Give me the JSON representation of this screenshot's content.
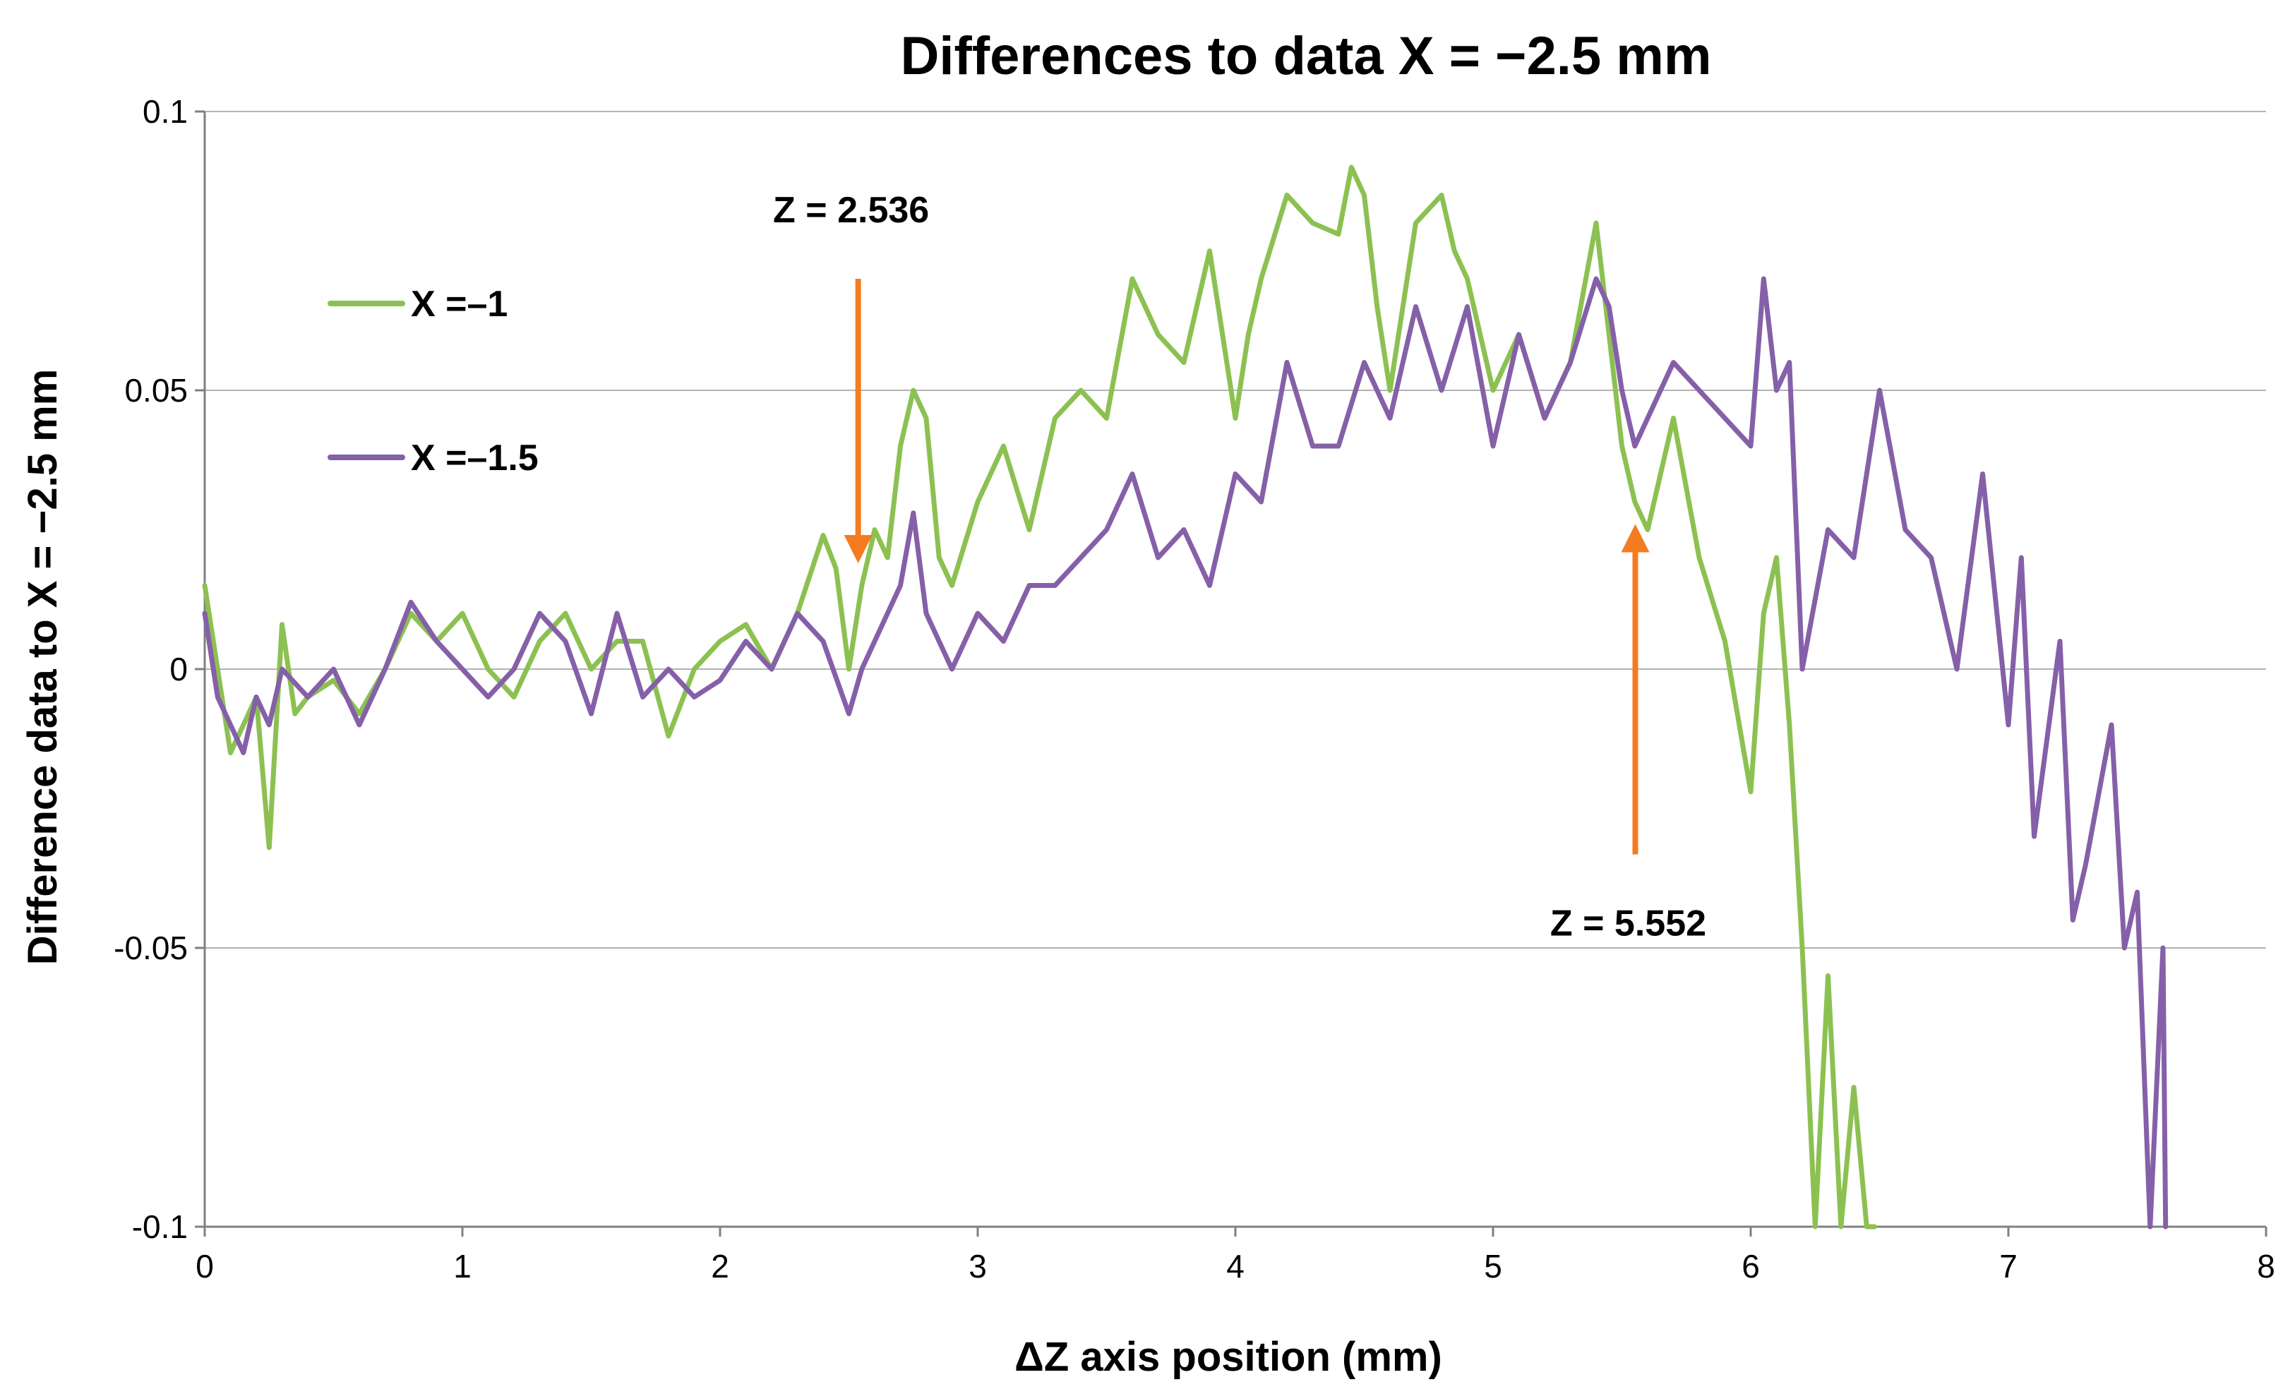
{
  "chart_data": {
    "type": "line",
    "title": "Differences to data X = −2.5 mm",
    "xlabel": "ΔZ axis position (mm)",
    "ylabel": "Difference data to X = −2.5 mm",
    "xlim": [
      0,
      8
    ],
    "ylim": [
      -0.1,
      0.1
    ],
    "xticks": [
      "0",
      "1",
      "2",
      "3",
      "4",
      "5",
      "6",
      "7",
      "8"
    ],
    "yticks": [
      "0.1",
      "0.05",
      "0",
      "-0.05",
      "-0.1"
    ],
    "grid": "horizontal",
    "legend_position": "top-left",
    "series": [
      {
        "name": "X =–1",
        "color": "#8cc152",
        "x": [
          0.0,
          0.05,
          0.1,
          0.15,
          0.2,
          0.25,
          0.3,
          0.35,
          0.4,
          0.5,
          0.6,
          0.7,
          0.8,
          0.9,
          1.0,
          1.1,
          1.2,
          1.3,
          1.4,
          1.5,
          1.6,
          1.7,
          1.8,
          1.9,
          2.0,
          2.1,
          2.2,
          2.3,
          2.4,
          2.45,
          2.5,
          2.55,
          2.6,
          2.65,
          2.7,
          2.75,
          2.8,
          2.85,
          2.9,
          3.0,
          3.1,
          3.2,
          3.3,
          3.4,
          3.5,
          3.6,
          3.7,
          3.8,
          3.9,
          4.0,
          4.05,
          4.1,
          4.2,
          4.3,
          4.4,
          4.45,
          4.5,
          4.55,
          4.6,
          4.7,
          4.8,
          4.85,
          4.9,
          5.0,
          5.1,
          5.2,
          5.3,
          5.4,
          5.45,
          5.5,
          5.55,
          5.6,
          5.7,
          5.8,
          5.9,
          6.0,
          6.05,
          6.1,
          6.15,
          6.2,
          6.25,
          6.3,
          6.35,
          6.4,
          6.45,
          6.48
        ],
        "y": [
          0.015,
          0.0,
          -0.015,
          -0.01,
          -0.005,
          -0.032,
          0.008,
          -0.008,
          -0.005,
          -0.002,
          -0.008,
          0.0,
          0.01,
          0.005,
          0.01,
          0.0,
          -0.005,
          0.005,
          0.01,
          0.0,
          0.005,
          0.005,
          -0.012,
          0.0,
          0.005,
          0.008,
          0.0,
          0.01,
          0.024,
          0.018,
          0.0,
          0.015,
          0.025,
          0.02,
          0.04,
          0.05,
          0.045,
          0.02,
          0.015,
          0.03,
          0.04,
          0.025,
          0.045,
          0.05,
          0.045,
          0.07,
          0.06,
          0.055,
          0.075,
          0.045,
          0.06,
          0.07,
          0.085,
          0.08,
          0.078,
          0.09,
          0.085,
          0.065,
          0.05,
          0.08,
          0.085,
          0.075,
          0.07,
          0.05,
          0.06,
          0.045,
          0.055,
          0.08,
          0.06,
          0.04,
          0.03,
          0.025,
          0.045,
          0.02,
          0.005,
          -0.022,
          0.01,
          0.02,
          -0.01,
          -0.05,
          -0.1,
          -0.055,
          -0.1,
          -0.075,
          -0.1,
          -0.1
        ]
      },
      {
        "name": "X =–1.5",
        "color": "#8560a8",
        "x": [
          0.0,
          0.05,
          0.1,
          0.15,
          0.2,
          0.25,
          0.3,
          0.4,
          0.5,
          0.6,
          0.7,
          0.8,
          0.9,
          1.0,
          1.1,
          1.2,
          1.3,
          1.4,
          1.5,
          1.6,
          1.7,
          1.8,
          1.9,
          2.0,
          2.1,
          2.2,
          2.3,
          2.4,
          2.5,
          2.55,
          2.6,
          2.7,
          2.75,
          2.8,
          2.9,
          3.0,
          3.1,
          3.2,
          3.3,
          3.4,
          3.5,
          3.6,
          3.7,
          3.8,
          3.9,
          4.0,
          4.1,
          4.2,
          4.3,
          4.4,
          4.5,
          4.6,
          4.7,
          4.8,
          4.9,
          5.0,
          5.1,
          5.2,
          5.3,
          5.4,
          5.45,
          5.5,
          5.55,
          5.6,
          5.7,
          5.8,
          5.9,
          6.0,
          6.05,
          6.1,
          6.15,
          6.2,
          6.3,
          6.4,
          6.5,
          6.6,
          6.7,
          6.8,
          6.9,
          7.0,
          7.05,
          7.1,
          7.2,
          7.25,
          7.3,
          7.4,
          7.45,
          7.5,
          7.55,
          7.6,
          7.61
        ],
        "y": [
          0.01,
          -0.005,
          -0.01,
          -0.015,
          -0.005,
          -0.01,
          0.0,
          -0.005,
          0.0,
          -0.01,
          0.0,
          0.012,
          0.005,
          0.0,
          -0.005,
          0.0,
          0.01,
          0.005,
          -0.008,
          0.01,
          -0.005,
          0.0,
          -0.005,
          -0.002,
          0.005,
          0.0,
          0.01,
          0.005,
          -0.008,
          0.0,
          0.005,
          0.015,
          0.028,
          0.01,
          0.0,
          0.01,
          0.005,
          0.015,
          0.015,
          0.02,
          0.025,
          0.035,
          0.02,
          0.025,
          0.015,
          0.035,
          0.03,
          0.055,
          0.04,
          0.04,
          0.055,
          0.045,
          0.065,
          0.05,
          0.065,
          0.04,
          0.06,
          0.045,
          0.055,
          0.07,
          0.065,
          0.05,
          0.04,
          0.045,
          0.055,
          0.05,
          0.045,
          0.04,
          0.07,
          0.05,
          0.055,
          0.0,
          0.025,
          0.02,
          0.05,
          0.025,
          0.02,
          0.0,
          0.035,
          -0.01,
          0.02,
          -0.03,
          0.005,
          -0.045,
          -0.035,
          -0.01,
          -0.05,
          -0.04,
          -0.1,
          -0.05,
          -0.1
        ]
      }
    ],
    "annotations": [
      {
        "text": "Z = 2.536",
        "x": 2.536,
        "y": 0.02,
        "arrow": "down",
        "color": "#f47b20"
      },
      {
        "text": "Z = 5.552",
        "x": 5.552,
        "y": 0.025,
        "arrow": "up",
        "color": "#f47b20"
      }
    ]
  }
}
